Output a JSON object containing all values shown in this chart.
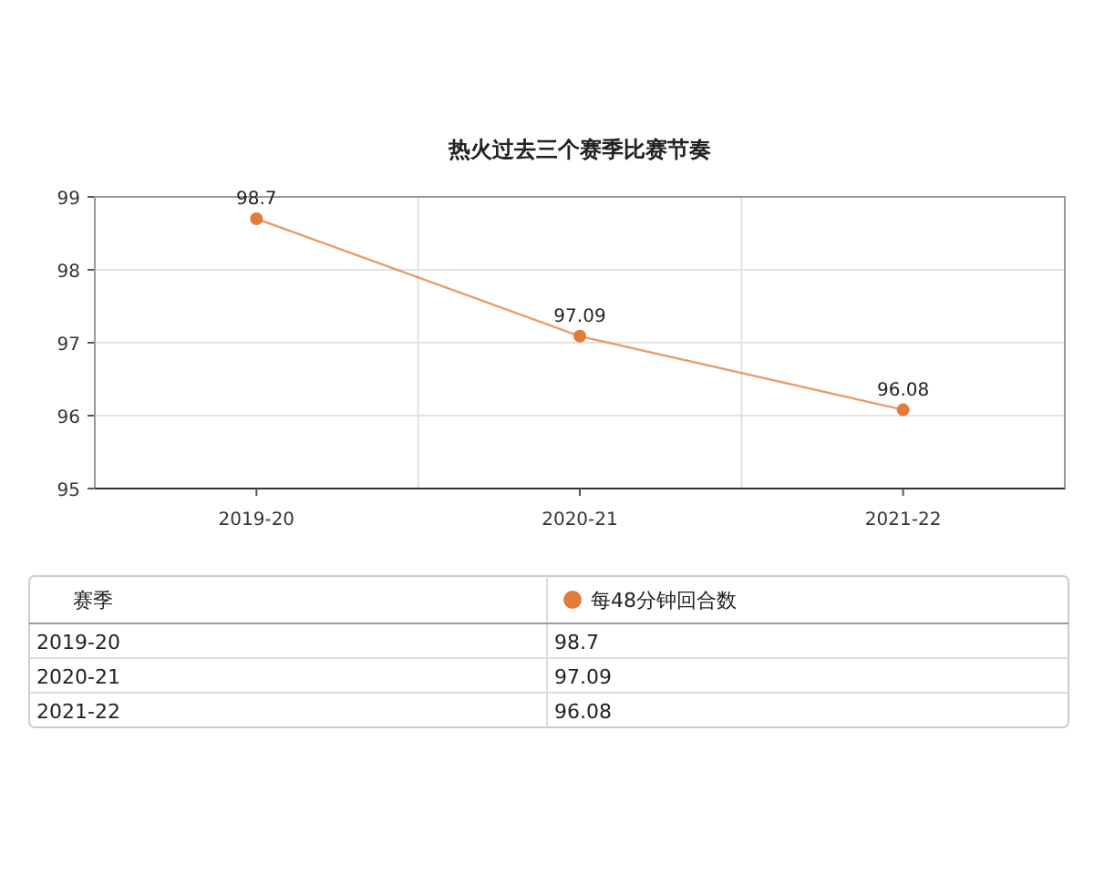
{
  "chart_data": [
    {
      "type": "line",
      "title": "热火过去三个赛季比赛节奏",
      "categories": [
        "2019-20",
        "2020-21",
        "2021-22"
      ],
      "series": [
        {
          "color": "#e07b39",
          "values": [
            98.7,
            97.09,
            96.08
          ]
        }
      ],
      "ylim": [
        95,
        99
      ],
      "yticks": [
        95,
        96,
        97,
        98,
        99
      ],
      "grid": true,
      "marker": "circle",
      "line_style": "solid",
      "data_labels": true
    },
    {
      "type": "other",
      "xlabel": "赛季",
      "categories": [
        "2019-20",
        "2020-21",
        "2021-22"
      ],
      "series": [
        {
          "name": "每48分钟回合数",
          "color": "#e07b39",
          "values": [
            98.7,
            97.09,
            96.08
          ]
        }
      ],
      "data_labels": true,
      "legend": "top"
    }
  ]
}
